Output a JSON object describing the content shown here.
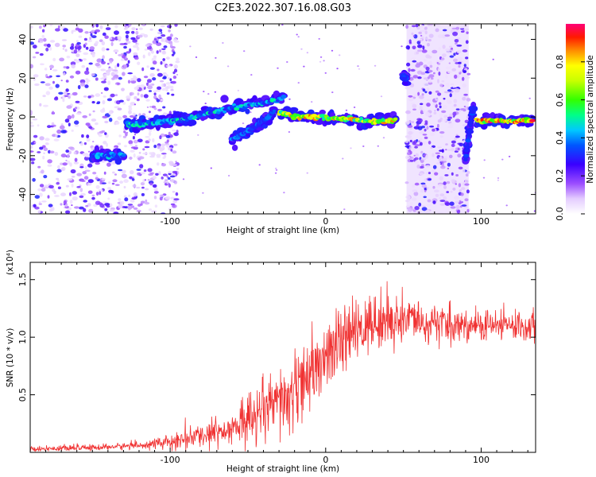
{
  "title": "C2E3.2022.307.16.08.G03",
  "chart_data": [
    {
      "type": "heatmap",
      "xlabel": "Height of straight line (km)",
      "ylabel": "Frequency (Hz)",
      "xlim": [
        -190,
        135
      ],
      "ylim": [
        -50,
        48
      ],
      "xticks": [
        -100,
        0,
        100
      ],
      "xtick_labels": [
        "-100",
        "0",
        "100"
      ],
      "yticks": [
        -40,
        -20,
        0,
        20,
        40
      ],
      "ytick_labels": [
        "-40",
        "-20",
        "0",
        "20",
        "40"
      ],
      "colorbar": {
        "label": "Normalized spectral amplitude",
        "range": [
          0,
          1
        ],
        "ticks": [
          0.0,
          0.2,
          0.4,
          0.6,
          0.8
        ],
        "tick_labels": [
          "0.0",
          "0.2",
          "0.4",
          "0.6",
          "0.8"
        ]
      },
      "tracks": [
        {
          "x": [
            -150,
            -145,
            -138,
            -130
          ],
          "y": [
            -20,
            -20,
            -20,
            -20
          ],
          "amp": 0.45
        },
        {
          "x": [
            -128,
            -120,
            -110,
            -100,
            -90,
            -80,
            -70,
            -60,
            -50,
            -42,
            -35,
            -30,
            -27
          ],
          "y": [
            -4,
            -4,
            -3,
            -2,
            -1,
            1,
            3,
            5,
            6,
            7,
            8,
            9,
            10
          ],
          "amp": 0.5
        },
        {
          "x": [
            -60,
            -52,
            -45,
            -38,
            -33
          ],
          "y": [
            -12,
            -8,
            -5,
            -1,
            3
          ],
          "amp": 0.4
        },
        {
          "x": [
            -30,
            -22,
            -15,
            -5,
            5,
            15,
            25,
            35,
            45
          ],
          "y": [
            2,
            1,
            0,
            0,
            -1,
            -1,
            -2,
            -2,
            -2
          ],
          "amp": 0.85
        },
        {
          "x": [
            52,
            51,
            50,
            49,
            50
          ],
          "y": [
            20,
            12,
            5,
            -5,
            -12
          ],
          "amp": 0.35
        },
        {
          "x": [
            90,
            92,
            94,
            95
          ],
          "y": [
            -22,
            -10,
            0,
            5
          ],
          "amp": 0.35
        },
        {
          "x": [
            97,
            105,
            115,
            125,
            133
          ],
          "y": [
            -2,
            -2,
            -2,
            -2,
            -2
          ],
          "amp": 0.95
        }
      ],
      "noise_regions": [
        {
          "x": [
            -190,
            -95
          ],
          "density": "high"
        },
        {
          "x": [
            52,
            92
          ],
          "density": "high"
        }
      ]
    },
    {
      "type": "line",
      "xlabel": "Height of straight line (km)",
      "ylabel": "SNR (10 * v/v)",
      "yscale_label": "(x10⁴)",
      "xlim": [
        -190,
        135
      ],
      "ylim": [
        0,
        1.65
      ],
      "xticks": [
        -100,
        0,
        100
      ],
      "xtick_labels": [
        "-100",
        "0",
        "100"
      ],
      "yticks": [
        0.5,
        1.0,
        1.5
      ],
      "ytick_labels": [
        "0.5",
        "1.0",
        "1.5"
      ],
      "series": [
        {
          "color": "#f03232",
          "trend": {
            "x": [
              -190,
              -150,
              -120,
              -100,
              -80,
              -60,
              -40,
              -30,
              -20,
              -10,
              0,
              10,
              20,
              30,
              40,
              50,
              60,
              70,
              80,
              90,
              100,
              110,
              120,
              135
            ],
            "y": [
              0.03,
              0.04,
              0.06,
              0.09,
              0.14,
              0.22,
              0.32,
              0.42,
              0.52,
              0.65,
              0.8,
              0.95,
              1.05,
              1.12,
              1.15,
              1.15,
              1.13,
              1.12,
              1.1,
              1.1,
              1.1,
              1.1,
              1.1,
              1.1
            ]
          },
          "amplitude": {
            "x": [
              -190,
              -120,
              -100,
              -60,
              -40,
              -20,
              0,
              20,
              40,
              60,
              80,
              100,
              135
            ],
            "y": [
              0.015,
              0.02,
              0.04,
              0.1,
              0.18,
              0.22,
              0.2,
              0.18,
              0.16,
              0.12,
              0.1,
              0.09,
              0.09
            ]
          }
        }
      ]
    }
  ]
}
